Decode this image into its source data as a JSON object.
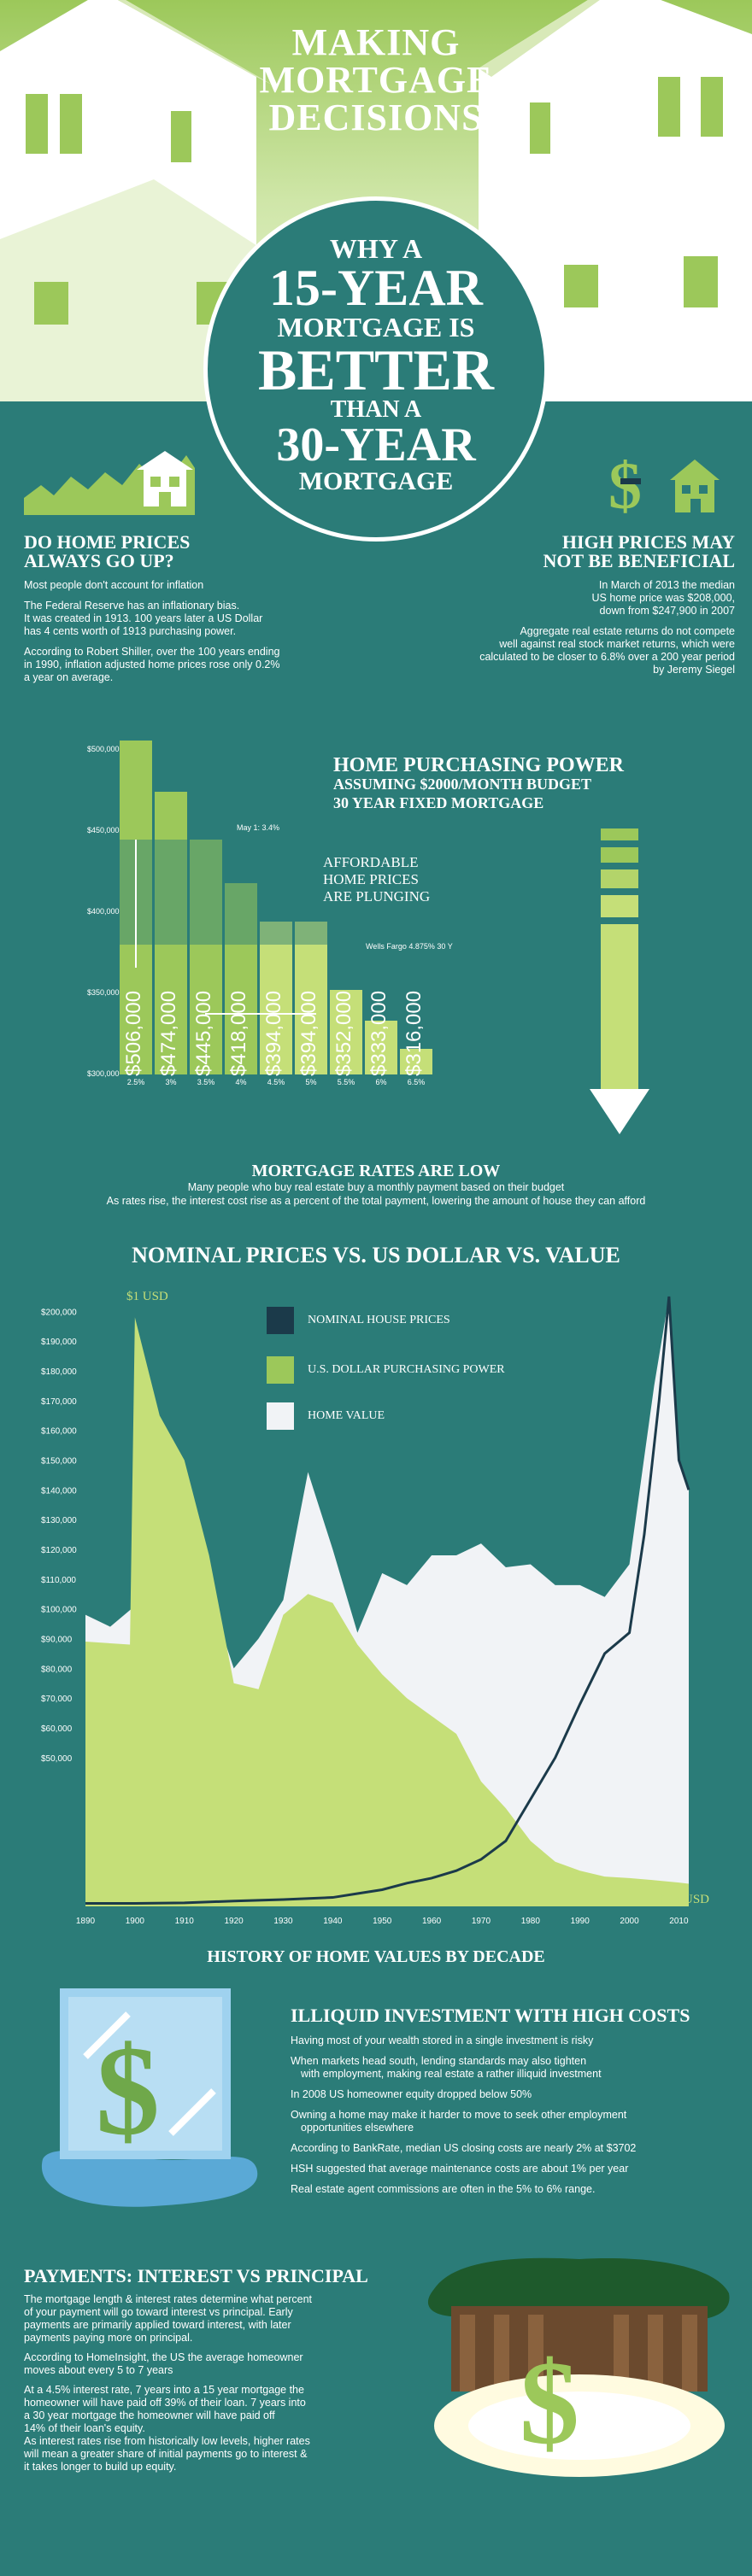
{
  "header": {
    "title_lines": [
      "MAKING",
      "MORTGAGE",
      "DECISIONS"
    ],
    "circle_lines": [
      "WHY A",
      "15-YEAR",
      "MORTGAGE IS",
      "BETTER",
      "THAN A",
      "30-YEAR",
      "MORTGAGE"
    ]
  },
  "home_prices": {
    "heading_lines": [
      "DO HOME PRICES",
      "ALWAYS GO UP?"
    ],
    "p1": "Most people don't account for inflation",
    "p2_lines": [
      "The Federal Reserve has an inflationary bias.",
      "It was created in 1913. 100 years later a US Dollar",
      "has 4 cents worth of 1913 purchasing power."
    ],
    "p3_lines": [
      "According to Robert Shiller, over the 100 years ending",
      "in 1990, inflation adjusted home prices rose only 0.2%",
      "a year on average."
    ]
  },
  "high_prices": {
    "heading_lines": [
      "HIGH PRICES MAY",
      "NOT BE BENEFICIAL"
    ],
    "p1_lines": [
      "In March of 2013 the median",
      "US home price was $208,000,",
      "down from $247,900 in 2007"
    ],
    "p2_lines": [
      "Aggregate real estate returns do not compete",
      "well against real stock market returns, which were",
      "calculated to be closer to 6.8% over a 200 year period",
      "by Jeremy Siegel"
    ]
  },
  "purchasing_power": {
    "title_lines": [
      "HOME PURCHASING POWER",
      "ASSUMING $2000/MONTH BUDGET",
      "30 YEAR FIXED MORTGAGE"
    ],
    "affordable_lines": [
      "AFFORDABLE",
      "HOME PRICES",
      "ARE PLUNGING"
    ],
    "annotation_may": "May 1: 3.4%",
    "annotation_wells": "Wells Fargo 4.875% 30 Y",
    "y_ticks": [
      "$500,000",
      "$450,000",
      "$400,000",
      "$350,000",
      "$300,000"
    ]
  },
  "rates_low": {
    "heading": "MORTGAGE RATES ARE LOW",
    "line1": "Many people who buy real estate buy a monthly payment based on their budget",
    "line2": "As rates rise, the interest cost rise as a percent of the total payment, lowering the amount of  house they can afford"
  },
  "nominal": {
    "title": "NOMINAL PRICES VS. US DOLLAR VS. VALUE",
    "label_start": "$1 USD",
    "label_end": "$.04 USD",
    "legend": [
      "NOMINAL HOUSE PRICES",
      "U.S. DOLLAR PURCHASING POWER",
      "HOME VALUE"
    ],
    "y_ticks": [
      "$200,000",
      "$190,000",
      "$180,000",
      "$170,000",
      "$160,000",
      "$150,000",
      "$140,000",
      "$130,000",
      "$120,000",
      "$110,000",
      "$100,000",
      "$90,000",
      "$80,000",
      "$70,000",
      "$60,000",
      "$50,000"
    ],
    "x_ticks": [
      "1890",
      "1900",
      "1910",
      "1920",
      "1930",
      "1940",
      "1950",
      "1960",
      "1970",
      "1980",
      "1990",
      "2000",
      "2010"
    ],
    "caption": "HISTORY OF HOME VALUES BY DECADE"
  },
  "illiquid": {
    "heading": "ILLIQUID INVESTMENT WITH HIGH COSTS",
    "items": [
      [
        "Having most of your wealth stored in a single investment is risky"
      ],
      [
        "When markets head south, lending standards may also tighten",
        "with employment, making real estate a rather illiquid investment"
      ],
      [
        "In 2008 US homeowner equity dropped below 50%"
      ],
      [
        "Owning a home may make it harder to move to seek other employment",
        "opportunities elsewhere"
      ],
      [
        "According to BankRate, median US closing costs are nearly 2% at $3702"
      ],
      [
        "HSH suggested that average maintenance costs are about 1% per year"
      ],
      [
        "Real estate agent commissions are often in the 5% to 6% range."
      ]
    ]
  },
  "payments": {
    "heading": "PAYMENTS: INTEREST VS PRINCIPAL",
    "p1_lines": [
      "The mortgage length & interest rates determine what percent",
      "of your payment will go toward interest vs principal. Early",
      "payments are primarily applied toward interest, with later",
      "payments paying more on principal."
    ],
    "p2_lines": [
      "According to HomeInsight, the US the average homeowner",
      "moves about every 5 to 7 years"
    ],
    "p3_lines": [
      "At a 4.5% interest rate, 7 years into a 15 year mortgage the",
      "homeowner will have paid off 39% of their loan. 7 years into",
      "a 30 year mortgage the homeowner will have paid off",
      "14% of their loan's equity."
    ],
    "p4_lines": [
      "As interest rates rise from historically low levels, higher rates",
      "will mean a greater share of initial payments go to interest &",
      "it takes longer to build up equity."
    ]
  },
  "chart_data": [
    {
      "type": "bar",
      "title": "HOME PURCHASING POWER",
      "categories": [
        "2.5%",
        "3%",
        "3.5%",
        "4%",
        "4.5%",
        "5%",
        "5.5%",
        "6%",
        "6.5%"
      ],
      "values": [
        506000,
        474000,
        445000,
        418000,
        394000,
        394000,
        352000,
        333000,
        316000
      ],
      "value_labels": [
        "$506,000",
        "$474,000",
        "$445,000",
        "$418,000",
        "$394,000",
        "$394,000",
        "$352,000",
        "$333,000",
        "$316,000"
      ],
      "ylim": [
        300000,
        500000
      ]
    },
    {
      "type": "area",
      "title": "NOMINAL PRICES VS. US DOLLAR VS. VALUE",
      "xlabel": "HISTORY OF HOME VALUES BY DECADE",
      "xlim": [
        1890,
        2012
      ],
      "ylim": [
        0,
        205000
      ],
      "series": [
        {
          "name": "NOMINAL HOUSE PRICES",
          "x": [
            1890,
            1900,
            1910,
            1920,
            1930,
            1940,
            1945,
            1950,
            1955,
            1960,
            1965,
            1970,
            1975,
            1980,
            1985,
            1990,
            1995,
            2000,
            2003,
            2006,
            2008,
            2010,
            2012
          ],
          "values": [
            1000,
            1000,
            1200,
            1800,
            2300,
            3000,
            4300,
            5600,
            7800,
            9500,
            12000,
            15800,
            22000,
            36000,
            50000,
            68000,
            85000,
            92000,
            125000,
            170000,
            205000,
            150000,
            140000
          ]
        },
        {
          "name": "U.S. DOLLAR PURCHASING POWER",
          "x": [
            1890,
            1899,
            1900,
            1905,
            1910,
            1915,
            1920,
            1925,
            1930,
            1935,
            1940,
            1945,
            1950,
            1955,
            1960,
            1965,
            1970,
            1975,
            1980,
            1985,
            1990,
            1995,
            2000,
            2005,
            2010,
            2012
          ],
          "values": [
            89000,
            88000,
            198000,
            165000,
            150000,
            118000,
            75000,
            73000,
            98000,
            105000,
            102000,
            88000,
            78000,
            70000,
            64000,
            58000,
            42000,
            33000,
            22000,
            15000,
            12000,
            10000,
            9500,
            8800,
            8000,
            7600
          ]
        },
        {
          "name": "HOME VALUE",
          "x": [
            1890,
            1895,
            1900,
            1905,
            1910,
            1915,
            1920,
            1925,
            1930,
            1935,
            1940,
            1945,
            1950,
            1955,
            1960,
            1965,
            1970,
            1975,
            1980,
            1985,
            1990,
            1995,
            2000,
            2005,
            2008,
            2010,
            2012
          ],
          "values": [
            98000,
            94000,
            101000,
            110000,
            98000,
            105000,
            80000,
            90000,
            103000,
            146000,
            120000,
            92000,
            112000,
            108000,
            118000,
            118000,
            122000,
            114000,
            115000,
            108000,
            108000,
            104000,
            115000,
            175000,
            205000,
            150000,
            140000
          ]
        }
      ]
    }
  ],
  "colors": {
    "teal": "#2b7c78",
    "lime": "#c5df78",
    "green": "#9cc85a",
    "navy": "#1b3a4a"
  }
}
